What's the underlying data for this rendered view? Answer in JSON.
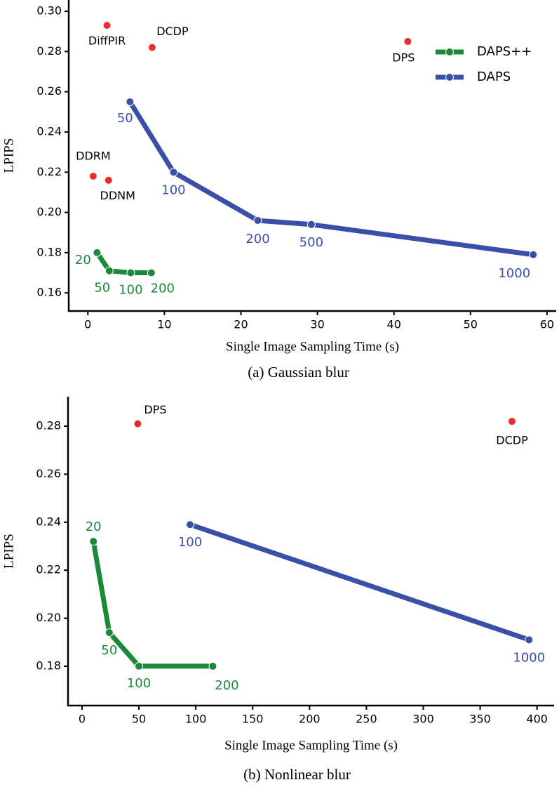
{
  "chart_data": [
    {
      "type": "line",
      "caption": "(a) Gaussian blur",
      "xlabel": "Single Image Sampling Time (s)",
      "ylabel": "LPIPS",
      "xlim": [
        -2.5,
        61.2
      ],
      "xticks": [
        0,
        10,
        20,
        30,
        40,
        50,
        60
      ],
      "ylim": [
        0.151,
        0.3056
      ],
      "yticks": [
        {
          "value": 0.16,
          "label": "0.16"
        },
        {
          "value": 0.18,
          "label": "0.18"
        },
        {
          "value": 0.2,
          "label": "0.20"
        },
        {
          "value": 0.22,
          "label": "0.22"
        },
        {
          "value": 0.24,
          "label": "0.24"
        },
        {
          "value": 0.26,
          "label": "0.26"
        },
        {
          "value": 0.28,
          "label": "0.28"
        },
        {
          "value": 0.3,
          "label": "0.30"
        }
      ],
      "legend": "upper right",
      "series": [
        {
          "name": "DAPS++",
          "color": "#1a8a3a",
          "x": [
            1.2,
            2.8,
            5.6,
            8.3
          ],
          "values": [
            0.18,
            0.171,
            0.17,
            0.17
          ],
          "labels": [
            "20",
            "50",
            "100",
            "200"
          ]
        },
        {
          "name": "DAPS",
          "color": "#3a4fa8",
          "x": [
            5.5,
            11.2,
            22.2,
            29.2,
            58.2
          ],
          "values": [
            0.255,
            0.22,
            0.196,
            0.194,
            0.179
          ],
          "labels": [
            "50",
            "100",
            "200",
            "500",
            "1000"
          ]
        }
      ],
      "points": {
        "color": "#e62e2e",
        "x": [
          2.5,
          8.4,
          41.8,
          0.7,
          2.7
        ],
        "values": [
          0.293,
          0.282,
          0.285,
          0.218,
          0.216
        ],
        "labels": [
          "DiffPIR",
          "DCDP",
          "DPS",
          "DDRM",
          "DDNM"
        ]
      }
    },
    {
      "type": "line",
      "caption": "(b) Nonlinear blur",
      "xlabel": "Single Image Sampling Time (s)",
      "ylabel": "LPIPS",
      "xlim": [
        -12.3,
        415
      ],
      "xticks": [
        0,
        50,
        100,
        150,
        200,
        250,
        300,
        350,
        400
      ],
      "ylim": [
        0.1636,
        0.2923
      ],
      "yticks": [
        {
          "value": 0.18,
          "label": "0.18"
        },
        {
          "value": 0.2,
          "label": "0.20"
        },
        {
          "value": 0.22,
          "label": "0.22"
        },
        {
          "value": 0.24,
          "label": "0.24"
        },
        {
          "value": 0.26,
          "label": "0.26"
        },
        {
          "value": 0.28,
          "label": "0.28"
        }
      ],
      "legend": false,
      "series": [
        {
          "color": "#1a8a3a",
          "x": [
            10,
            24,
            50,
            115
          ],
          "values": [
            0.232,
            0.194,
            0.18,
            0.18
          ],
          "labels": [
            "20",
            "50",
            "100",
            "200"
          ]
        },
        {
          "color": "#3a4fa8",
          "x": [
            95,
            393
          ],
          "values": [
            0.239,
            0.191
          ],
          "labels": [
            "100",
            "1000"
          ]
        }
      ],
      "points": {
        "color": "#e62e2e",
        "x": [
          49,
          378
        ],
        "values": [
          0.281,
          0.282
        ],
        "labels": [
          "DPS",
          "DCDP"
        ]
      }
    }
  ]
}
